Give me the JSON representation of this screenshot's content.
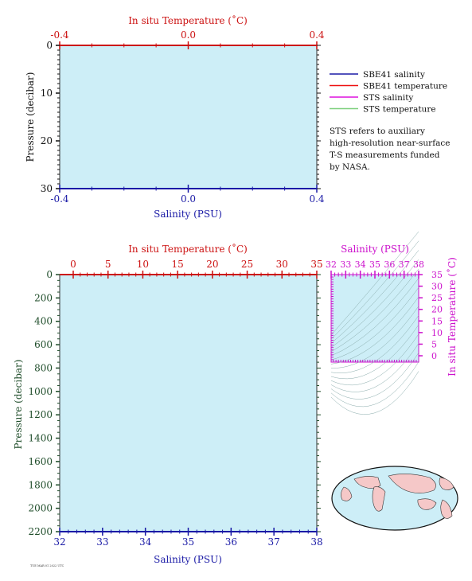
{
  "colors": {
    "plot_bg": "#cdeef7",
    "salinity_axis": "#1a1aa6",
    "temperature_axis": "#cc1111",
    "pressure_axis": "#1f4d2a",
    "ts_axis": "#cc11cc",
    "sts_temp_line": "#7ed07e",
    "map_land": "#f5c8c8",
    "map_ocean": "#cdeef7"
  },
  "chart_data": [
    {
      "type": "line",
      "panel": "top-profile",
      "x_top_label": "In situ Temperature (˚C)",
      "x_top_ticks": [
        "-0.4",
        "0.0",
        "0.4"
      ],
      "x_top_range": [
        -0.4,
        0.4
      ],
      "x_bottom_label": "Salinity (PSU)",
      "x_bottom_ticks": [
        "-0.4",
        "0.0",
        "0.4"
      ],
      "x_bottom_range": [
        -0.4,
        0.4
      ],
      "y_label": "Pressure (decibar)",
      "y_ticks": [
        "0",
        "10",
        "20",
        "30"
      ],
      "y_range": [
        0,
        30
      ],
      "series": []
    },
    {
      "type": "line",
      "panel": "bottom-profile",
      "x_top_label": "In situ Temperature (˚C)",
      "x_top_ticks": [
        "0",
        "5",
        "10",
        "15",
        "20",
        "25",
        "30",
        "35"
      ],
      "x_top_range": [
        0,
        35
      ],
      "x_bottom_label": "Salinity (PSU)",
      "x_bottom_ticks": [
        "32",
        "33",
        "34",
        "35",
        "36",
        "37",
        "38"
      ],
      "x_bottom_range": [
        32,
        38
      ],
      "y_label": "Pressure (decibar)",
      "y_ticks": [
        "0",
        "200",
        "400",
        "600",
        "800",
        "1000",
        "1200",
        "1400",
        "1600",
        "1800",
        "2000",
        "2200"
      ],
      "y_range": [
        0,
        2200
      ],
      "series": []
    },
    {
      "type": "scatter",
      "panel": "ts-diagram",
      "x_label": "Salinity (PSU)",
      "x_ticks": [
        "32",
        "33",
        "34",
        "35",
        "36",
        "37",
        "38"
      ],
      "x_range": [
        32,
        38
      ],
      "y_label": "In situ Temperature (˚C)",
      "y_ticks": [
        "0",
        "5",
        "10",
        "15",
        "20",
        "25",
        "30",
        "35"
      ],
      "y_range": [
        0,
        35
      ],
      "series": []
    }
  ],
  "legend": {
    "items": [
      {
        "label": "SBE41 salinity",
        "color": "#1a1aa6"
      },
      {
        "label": "SBE41 temperature",
        "color": "#ee1111"
      },
      {
        "label": "STS salinity",
        "color": "#dd11dd"
      },
      {
        "label": "STS temperature",
        "color": "#7ed07e"
      }
    ],
    "note_lines": [
      "STS refers to auxiliary",
      "high-resolution near-surface",
      "T-S measurements funded",
      "by NASA."
    ]
  },
  "footer": {
    "stamp": "TUE MAR 01 2022 UTC"
  }
}
